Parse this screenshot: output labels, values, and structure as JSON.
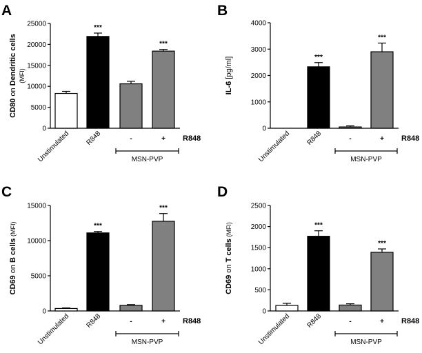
{
  "colors": {
    "unstimulated": "#ffffff",
    "r848": "#000000",
    "msn_pvp": "#808080",
    "axis": "#000000"
  },
  "chart_data": [
    {
      "type": "bar",
      "panel": "A",
      "categories": [
        "Unstimulated",
        "R848",
        "-",
        "+"
      ],
      "values": [
        8300,
        21900,
        10600,
        18400
      ],
      "errors": [
        500,
        800,
        600,
        400
      ],
      "significance": [
        "",
        "***",
        "",
        "***"
      ],
      "ylabel_parts": [
        {
          "text": "CD80",
          "bold": true
        },
        {
          "text": " on ",
          "bold": false
        },
        {
          "text": "Dendritic cells",
          "bold": true
        }
      ],
      "ylabel_sub": "(MFI)",
      "ylim": [
        0,
        25000
      ],
      "yticks": [
        0,
        5000,
        10000,
        15000,
        20000,
        25000
      ],
      "yticklabels": [
        "0",
        "5000",
        "10000",
        "15000",
        "20000",
        "25000"
      ],
      "group_label": "MSN-PVP",
      "r848_marker": "R848"
    },
    {
      "type": "bar",
      "panel": "B",
      "categories": [
        "Unstimulated",
        "R848",
        "-",
        "+"
      ],
      "values": [
        0,
        2330,
        50,
        2900
      ],
      "errors": [
        0,
        160,
        40,
        330
      ],
      "significance": [
        "",
        "***",
        "",
        "***"
      ],
      "ylabel_parts": [
        {
          "text": "IL-6",
          "bold": true
        },
        {
          "text": " [pg/ml]",
          "bold": false
        }
      ],
      "ylabel_sub": "",
      "ylim": [
        0,
        4000
      ],
      "yticks": [
        0,
        1000,
        2000,
        3000,
        4000
      ],
      "yticklabels": [
        "0",
        "1000",
        "2000",
        "3000",
        "4000"
      ],
      "group_label": "MSN-PVP",
      "r848_marker": "R848"
    },
    {
      "type": "bar",
      "panel": "C",
      "categories": [
        "Unstimulated",
        "R848",
        "-",
        "+"
      ],
      "values": [
        350,
        11100,
        800,
        12750
      ],
      "errors": [
        80,
        200,
        100,
        1100
      ],
      "significance": [
        "",
        "***",
        "",
        "***"
      ],
      "ylabel_parts": [
        {
          "text": "CD69",
          "bold": true
        },
        {
          "text": " on ",
          "bold": false
        },
        {
          "text": "B cells",
          "bold": true
        }
      ],
      "ylabel_sub": " (MFI)",
      "ylim": [
        0,
        15000
      ],
      "yticks": [
        0,
        5000,
        10000,
        15000
      ],
      "yticklabels": [
        "0",
        "5000",
        "10000",
        "15000"
      ],
      "group_label": "MSN-PVP",
      "r848_marker": "R848"
    },
    {
      "type": "bar",
      "panel": "D",
      "categories": [
        "Unstimulated",
        "R848",
        "-",
        "+"
      ],
      "values": [
        130,
        1770,
        140,
        1390
      ],
      "errors": [
        50,
        130,
        30,
        80
      ],
      "significance": [
        "",
        "***",
        "",
        "***"
      ],
      "ylabel_parts": [
        {
          "text": "CD69",
          "bold": true
        },
        {
          "text": " on ",
          "bold": false
        },
        {
          "text": "T cells",
          "bold": true
        }
      ],
      "ylabel_sub": " (MFI)",
      "ylim": [
        0,
        2500
      ],
      "yticks": [
        0,
        500,
        1000,
        1500,
        2000,
        2500
      ],
      "yticklabels": [
        "0",
        "500",
        "1000",
        "1500",
        "2000",
        "2500"
      ],
      "group_label": "MSN-PVP",
      "r848_marker": "R848"
    }
  ]
}
